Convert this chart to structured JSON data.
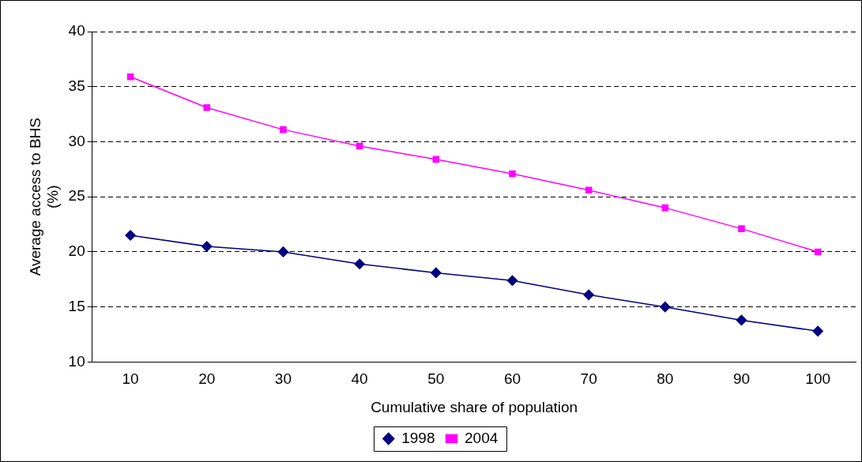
{
  "chart_data": {
    "type": "line",
    "xlabel": "Cumulative share of population",
    "ylabel": "Average access to BHS (%)",
    "categories": [
      "10",
      "20",
      "30",
      "40",
      "50",
      "60",
      "70",
      "80",
      "90",
      "100"
    ],
    "series": [
      {
        "name": "1998",
        "color": "#000080",
        "marker": "diamond",
        "values": [
          21.5,
          20.5,
          20.0,
          18.9,
          18.1,
          17.4,
          16.1,
          15.0,
          13.8,
          12.8
        ]
      },
      {
        "name": "2004",
        "color": "#ff00ff",
        "marker": "square",
        "values": [
          35.9,
          33.1,
          31.1,
          29.6,
          28.4,
          27.1,
          25.6,
          24.0,
          22.1,
          20.0
        ]
      }
    ],
    "ylim": [
      10,
      40
    ],
    "yticks": [
      10,
      15,
      20,
      25,
      30,
      35,
      40
    ],
    "grid": "y",
    "legend": "bottom"
  }
}
